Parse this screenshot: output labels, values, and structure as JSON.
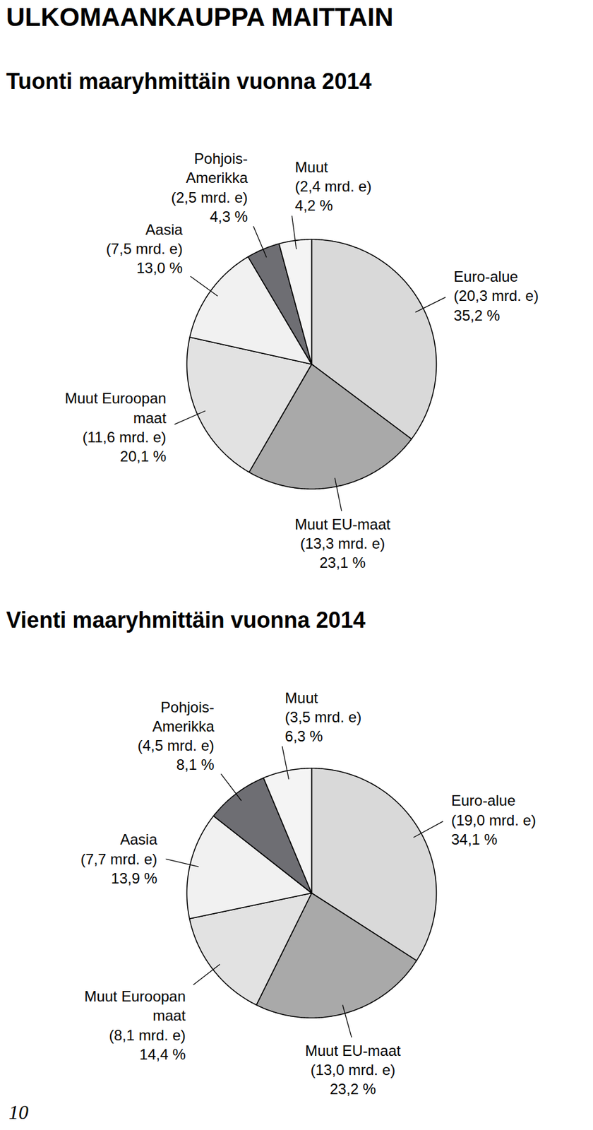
{
  "page": {
    "title": "ULKOMAANKAUPPA MAITTAIN",
    "page_number": 10
  },
  "chart_data": [
    {
      "type": "pie",
      "title": "Tuonti maaryhmittäin vuonna 2014",
      "categories": [
        "Euro-alue",
        "Muut EU-maat",
        "Muut Euroopan maat",
        "Aasia",
        "Pohjois-Amerikka",
        "Muut"
      ],
      "values": [
        35.2,
        23.1,
        20.1,
        13.0,
        4.3,
        4.2
      ],
      "value_labels": [
        "35,2 %",
        "23,1 %",
        "20,1 %",
        "13,0 %",
        "4,3 %",
        "4,2 %"
      ],
      "amounts": [
        20.3,
        13.3,
        11.6,
        7.5,
        2.5,
        2.4
      ],
      "amount_labels": [
        "(20,3 mrd. e)",
        "(13,3 mrd. e)",
        "(11,6 mrd. e)",
        "(7,5 mrd. e)",
        "(2,5 mrd. e)",
        "(2,4 mrd. e)"
      ],
      "colors": [
        "#d9d9d9",
        "#a9a9a9",
        "#e2e2e2",
        "#f1f1f1",
        "#6e6e73",
        "#f4f4f4"
      ],
      "data_labels": true
    },
    {
      "type": "pie",
      "title": "Vienti maaryhmittäin vuonna 2014",
      "categories": [
        "Euro-alue",
        "Muut EU-maat",
        "Muut Euroopan maat",
        "Aasia",
        "Pohjois-Amerikka",
        "Muut"
      ],
      "values": [
        34.1,
        23.2,
        14.4,
        13.9,
        8.1,
        6.3
      ],
      "value_labels": [
        "34,1 %",
        "23,2 %",
        "14,4 %",
        "13,9 %",
        "8,1 %",
        "6,3 %"
      ],
      "amounts": [
        19.0,
        13.0,
        8.1,
        7.7,
        4.5,
        3.5
      ],
      "amount_labels": [
        "(19,0 mrd. e)",
        "(13,0 mrd. e)",
        "(8,1 mrd. e)",
        "(7,7 mrd. e)",
        "(4,5 mrd. e)",
        "(3,5 mrd. e)"
      ],
      "colors": [
        "#d9d9d9",
        "#a9a9a9",
        "#e2e2e2",
        "#f1f1f1",
        "#6e6e73",
        "#f4f4f4"
      ],
      "data_labels": true
    }
  ]
}
